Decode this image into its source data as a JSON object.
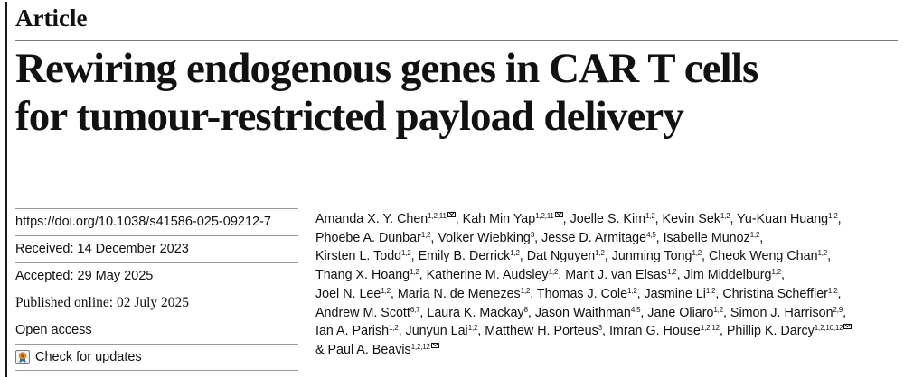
{
  "header": {
    "article_type": "Article"
  },
  "title": {
    "line1": "Rewiring endogenous genes in CAR T cells",
    "line2": "for tumour-restricted payload delivery"
  },
  "meta": {
    "doi": "https://doi.org/10.1038/s41586-025-09212-7",
    "received": "Received: 14 December 2023",
    "accepted": "Accepted: 29 May 2025",
    "published": "Published online: 02 July 2025",
    "access": "Open access",
    "check_updates": "Check for updates"
  },
  "author_lines": [
    [
      {
        "name": "Amanda X. Y. Chen",
        "aff": "1,2,11",
        "corr": true,
        "sep": ", "
      },
      {
        "name": "Kah Min Yap",
        "aff": "1,2,11",
        "corr": true,
        "sep": ", "
      },
      {
        "name": "Joelle S. Kim",
        "aff": "1,2",
        "sep": ", "
      },
      {
        "name": "Kevin Sek",
        "aff": "1,2",
        "sep": ", "
      },
      {
        "name": "Yu-Kuan Huang",
        "aff": "1,2",
        "sep": ","
      }
    ],
    [
      {
        "name": "Phoebe A. Dunbar",
        "aff": "1,2",
        "sep": ", "
      },
      {
        "name": "Volker Wiebking",
        "aff": "3",
        "sep": ", "
      },
      {
        "name": "Jesse D. Armitage",
        "aff": "4,5",
        "sep": ", "
      },
      {
        "name": "Isabelle Munoz",
        "aff": "1,2",
        "sep": ","
      }
    ],
    [
      {
        "name": "Kirsten L. Todd",
        "aff": "1,2",
        "sep": ", "
      },
      {
        "name": "Emily B. Derrick",
        "aff": "1,2",
        "sep": ", "
      },
      {
        "name": "Dat Nguyen",
        "aff": "1,2",
        "sep": ", "
      },
      {
        "name": "Junming Tong",
        "aff": "1,2",
        "sep": ", "
      },
      {
        "name": "Cheok Weng Chan",
        "aff": "1,2",
        "sep": ","
      }
    ],
    [
      {
        "name": "Thang X. Hoang",
        "aff": "1,2",
        "sep": ", "
      },
      {
        "name": "Katherine M. Audsley",
        "aff": "1,2",
        "sep": ", "
      },
      {
        "name": "Marit J. van Elsas",
        "aff": "1,2",
        "sep": ", "
      },
      {
        "name": "Jim Middelburg",
        "aff": "1,2",
        "sep": ","
      }
    ],
    [
      {
        "name": "Joel N. Lee",
        "aff": "1,2",
        "sep": ", "
      },
      {
        "name": "Maria N. de Menezes",
        "aff": "1,2",
        "sep": ", "
      },
      {
        "name": "Thomas J. Cole",
        "aff": "1,2",
        "sep": ", "
      },
      {
        "name": "Jasmine Li",
        "aff": "1,2",
        "sep": ", "
      },
      {
        "name": "Christina Scheffler",
        "aff": "1,2",
        "sep": ","
      }
    ],
    [
      {
        "name": "Andrew M. Scott",
        "aff": "6,7",
        "sep": ", "
      },
      {
        "name": "Laura K. Mackay",
        "aff": "8",
        "sep": ", "
      },
      {
        "name": "Jason Waithman",
        "aff": "4,5",
        "sep": ", "
      },
      {
        "name": "Jane Oliaro",
        "aff": "1,2",
        "sep": ", "
      },
      {
        "name": "Simon J. Harrison",
        "aff": "2,9",
        "sep": ","
      }
    ],
    [
      {
        "name": "Ian A. Parish",
        "aff": "1,2",
        "sep": ", "
      },
      {
        "name": "Junyun Lai",
        "aff": "1,2",
        "sep": ", "
      },
      {
        "name": "Matthew H. Porteus",
        "aff": "3",
        "sep": ", "
      },
      {
        "name": "Imran G. House",
        "aff": "1,2,12",
        "sep": ", "
      },
      {
        "name": "Phillip K. Darcy",
        "aff": "1,2,10,12",
        "corr": true,
        "sep": ""
      }
    ],
    [
      {
        "name": "& Paul A. Beavis",
        "aff": "1,2,12",
        "corr": true,
        "sep": ""
      }
    ]
  ]
}
